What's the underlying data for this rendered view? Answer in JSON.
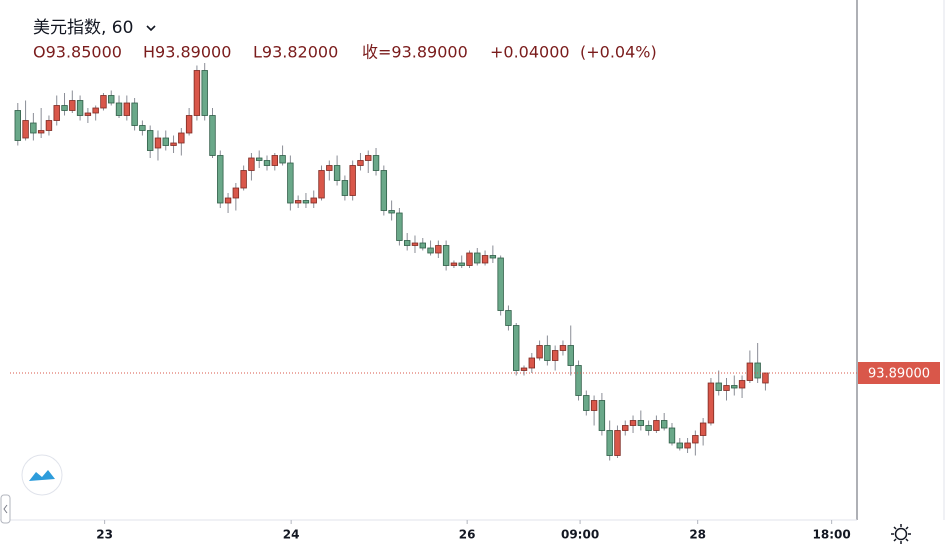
{
  "chart_data": {
    "type": "candlestick",
    "title": "美元指数, 60",
    "ohlc_labels": [
      "O93.85000",
      "H93.89000",
      "L93.82000",
      "收=93.89000",
      "+0.04000",
      "(+0.04%)"
    ],
    "last_price_label": "93.89000",
    "up_color": "#d9574a",
    "down_color": "#6aa889",
    "x": [
      0,
      1,
      2,
      3,
      4,
      5,
      6,
      7,
      8,
      9,
      10,
      11,
      12,
      13,
      14,
      15,
      16,
      17,
      18,
      19,
      20,
      21,
      22,
      23,
      24,
      25,
      26,
      27,
      28,
      29,
      30,
      31,
      32,
      33,
      34,
      35,
      36,
      37,
      38,
      39,
      40,
      41,
      42,
      43,
      44,
      45,
      46,
      47,
      48,
      49,
      50,
      51,
      52,
      53,
      54,
      55,
      56,
      57,
      58,
      59,
      60,
      61,
      62,
      63,
      64,
      65,
      66,
      67,
      68,
      69,
      70,
      71,
      72,
      73,
      74,
      75,
      76,
      77,
      78,
      79,
      80,
      81,
      82,
      83,
      84,
      85,
      86,
      87,
      88,
      89,
      90,
      91,
      92,
      93,
      94,
      95,
      96
    ],
    "open": [
      94.94,
      94.83,
      94.89,
      94.85,
      94.86,
      94.9,
      94.96,
      94.94,
      94.98,
      94.92,
      94.93,
      94.95,
      95.0,
      94.97,
      94.92,
      94.97,
      94.88,
      94.86,
      94.79,
      94.83,
      94.8,
      94.81,
      94.85,
      94.92,
      95.1,
      94.92,
      94.76,
      94.57,
      94.59,
      94.63,
      94.7,
      94.75,
      94.74,
      94.72,
      94.76,
      94.73,
      94.57,
      94.58,
      94.57,
      94.59,
      94.7,
      94.72,
      94.66,
      94.6,
      94.72,
      94.74,
      94.76,
      94.7,
      94.54,
      94.53,
      94.42,
      94.4,
      94.41,
      94.39,
      94.37,
      94.4,
      94.32,
      94.33,
      94.32,
      94.37,
      94.33,
      94.36,
      94.35,
      94.14,
      94.08,
      93.9,
      93.91,
      93.95,
      94.0,
      93.94,
      93.98,
      94.0,
      93.92,
      93.8,
      93.74,
      93.78,
      93.66,
      93.56,
      93.66,
      93.68,
      93.7,
      93.68,
      93.66,
      93.7,
      93.67,
      93.61,
      93.59,
      93.61,
      93.64,
      93.69,
      93.85,
      93.82,
      93.84,
      93.83,
      93.86,
      93.93,
      93.85
    ],
    "high": [
      94.97,
      94.98,
      94.93,
      94.95,
      94.92,
      95.0,
      95.01,
      95.02,
      95.0,
      94.95,
      94.96,
      95.01,
      95.02,
      95.0,
      95.0,
      94.99,
      94.9,
      94.88,
      94.86,
      94.86,
      94.84,
      94.87,
      94.95,
      95.12,
      95.13,
      94.95,
      94.78,
      94.61,
      94.65,
      94.72,
      94.77,
      94.78,
      94.76,
      94.77,
      94.8,
      94.76,
      94.6,
      94.61,
      94.62,
      94.72,
      94.74,
      94.76,
      94.68,
      94.74,
      94.77,
      94.78,
      94.79,
      94.72,
      94.58,
      94.55,
      94.45,
      94.44,
      94.43,
      94.42,
      94.42,
      94.42,
      94.34,
      94.36,
      94.38,
      94.39,
      94.38,
      94.4,
      94.36,
      94.16,
      94.09,
      93.92,
      93.97,
      94.02,
      94.04,
      94.0,
      94.02,
      94.08,
      93.94,
      93.82,
      93.8,
      93.81,
      93.7,
      93.68,
      93.7,
      93.72,
      93.74,
      93.7,
      93.72,
      93.73,
      93.69,
      93.63,
      93.63,
      93.66,
      93.71,
      93.87,
      93.9,
      93.87,
      93.88,
      93.88,
      93.98,
      94.01,
      93.89
    ],
    "low": [
      94.8,
      94.82,
      94.82,
      94.83,
      94.84,
      94.88,
      94.92,
      94.93,
      94.9,
      94.89,
      94.9,
      94.94,
      94.96,
      94.91,
      94.9,
      94.86,
      94.84,
      94.75,
      94.74,
      94.78,
      94.77,
      94.76,
      94.84,
      94.9,
      94.9,
      94.75,
      94.55,
      94.53,
      94.54,
      94.62,
      94.66,
      94.71,
      94.7,
      94.7,
      94.72,
      94.54,
      94.55,
      94.55,
      94.55,
      94.58,
      94.66,
      94.64,
      94.58,
      94.58,
      94.7,
      94.69,
      94.68,
      94.52,
      94.5,
      94.4,
      94.38,
      94.37,
      94.38,
      94.36,
      94.35,
      94.3,
      94.31,
      94.31,
      94.31,
      94.32,
      94.32,
      94.33,
      94.12,
      94.06,
      93.88,
      93.88,
      93.89,
      93.94,
      93.92,
      93.9,
      93.96,
      93.88,
      93.78,
      93.72,
      93.68,
      93.64,
      93.54,
      93.55,
      93.64,
      93.65,
      93.66,
      93.64,
      93.65,
      93.66,
      93.6,
      93.58,
      93.57,
      93.56,
      93.6,
      93.68,
      93.8,
      93.78,
      93.8,
      93.79,
      93.85,
      93.85,
      93.82
    ],
    "close": [
      94.82,
      94.9,
      94.85,
      94.86,
      94.9,
      94.96,
      94.94,
      94.98,
      94.92,
      94.93,
      94.95,
      95.0,
      94.97,
      94.92,
      94.97,
      94.88,
      94.86,
      94.78,
      94.83,
      94.8,
      94.81,
      94.85,
      94.92,
      95.1,
      94.92,
      94.76,
      94.57,
      94.59,
      94.63,
      94.7,
      94.75,
      94.74,
      94.72,
      94.76,
      94.73,
      94.57,
      94.58,
      94.57,
      94.59,
      94.7,
      94.72,
      94.66,
      94.6,
      94.72,
      94.74,
      94.76,
      94.7,
      94.54,
      94.53,
      94.42,
      94.4,
      94.41,
      94.39,
      94.37,
      94.4,
      94.32,
      94.33,
      94.32,
      94.37,
      94.33,
      94.36,
      94.35,
      94.14,
      94.08,
      93.9,
      93.91,
      93.95,
      94.0,
      93.94,
      93.98,
      94.0,
      93.92,
      93.8,
      93.74,
      93.78,
      93.66,
      93.56,
      93.66,
      93.68,
      93.7,
      93.68,
      93.66,
      93.7,
      93.67,
      93.61,
      93.59,
      93.61,
      93.64,
      93.69,
      93.85,
      93.82,
      93.84,
      93.83,
      93.86,
      93.93,
      93.87,
      93.89
    ],
    "xlim": [
      -1,
      107.5
    ],
    "xticks": [
      {
        "value": 11.15,
        "label": "23"
      },
      {
        "value": 35.1,
        "label": "24"
      },
      {
        "value": 57.7,
        "label": "26"
      },
      {
        "value": 72.2,
        "label": "09:00"
      },
      {
        "value": 87.3,
        "label": "28"
      },
      {
        "value": 104.5,
        "label": "18:00"
      }
    ],
    "ylim": [
      93.302,
      95.382
    ]
  }
}
